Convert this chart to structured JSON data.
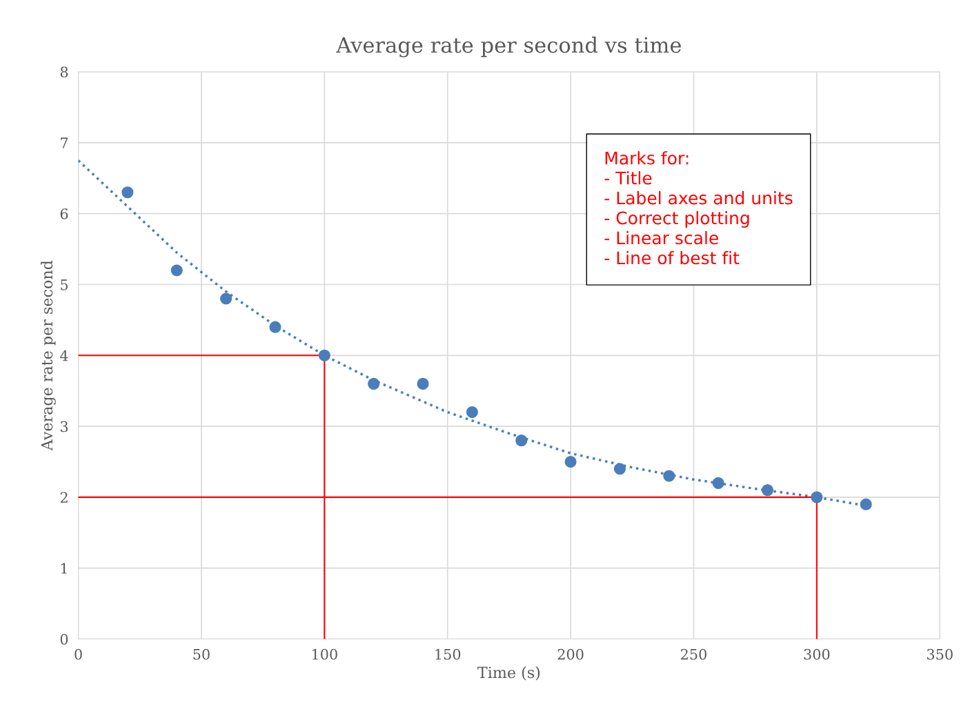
{
  "chart_data": {
    "type": "scatter",
    "title": "Average rate per second vs time",
    "xlabel": "Time (s)",
    "ylabel": "Average rate per second",
    "xlim": [
      0,
      350
    ],
    "xticks": [
      0,
      50,
      100,
      150,
      200,
      250,
      300,
      350
    ],
    "ylim": [
      0,
      8
    ],
    "yticks": [
      0,
      1,
      2,
      3,
      4,
      5,
      6,
      7,
      8
    ],
    "grid": true,
    "legend": false,
    "series": [
      {
        "type": "scatter",
        "color": "#4a7ebb",
        "marker": "circle",
        "x": [
          20,
          40,
          60,
          80,
          100,
          120,
          140,
          160,
          180,
          200,
          220,
          240,
          260,
          280,
          300,
          320
        ],
        "values": [
          6.3,
          5.2,
          4.8,
          4.4,
          4.0,
          3.6,
          3.6,
          3.2,
          2.8,
          2.5,
          2.4,
          2.3,
          2.2,
          2.1,
          2.0,
          1.9
        ]
      },
      {
        "type": "line",
        "color": "#4a7ebb",
        "line_style": "dotted",
        "x": [
          0,
          20,
          40,
          60,
          80,
          100,
          120,
          150,
          175,
          200,
          225,
          250,
          275,
          300,
          320
        ],
        "values": [
          6.75,
          6.1,
          5.45,
          4.9,
          4.42,
          4.0,
          3.65,
          3.2,
          2.9,
          2.62,
          2.42,
          2.25,
          2.12,
          2.0,
          1.88
        ]
      },
      {
        "type": "line",
        "color": "#ff0000",
        "line_style": "solid",
        "x": [
          0,
          100,
          100
        ],
        "values": [
          4,
          4,
          0
        ]
      },
      {
        "type": "line",
        "color": "#ff0000",
        "line_style": "solid",
        "x": [
          0,
          300,
          300
        ],
        "values": [
          2,
          2,
          0
        ]
      }
    ],
    "annotations": [
      "Marks for:\n- Title\n- Label axes and units\n- Correct plotting\n- Linear scale\n- Line of best fit"
    ]
  }
}
